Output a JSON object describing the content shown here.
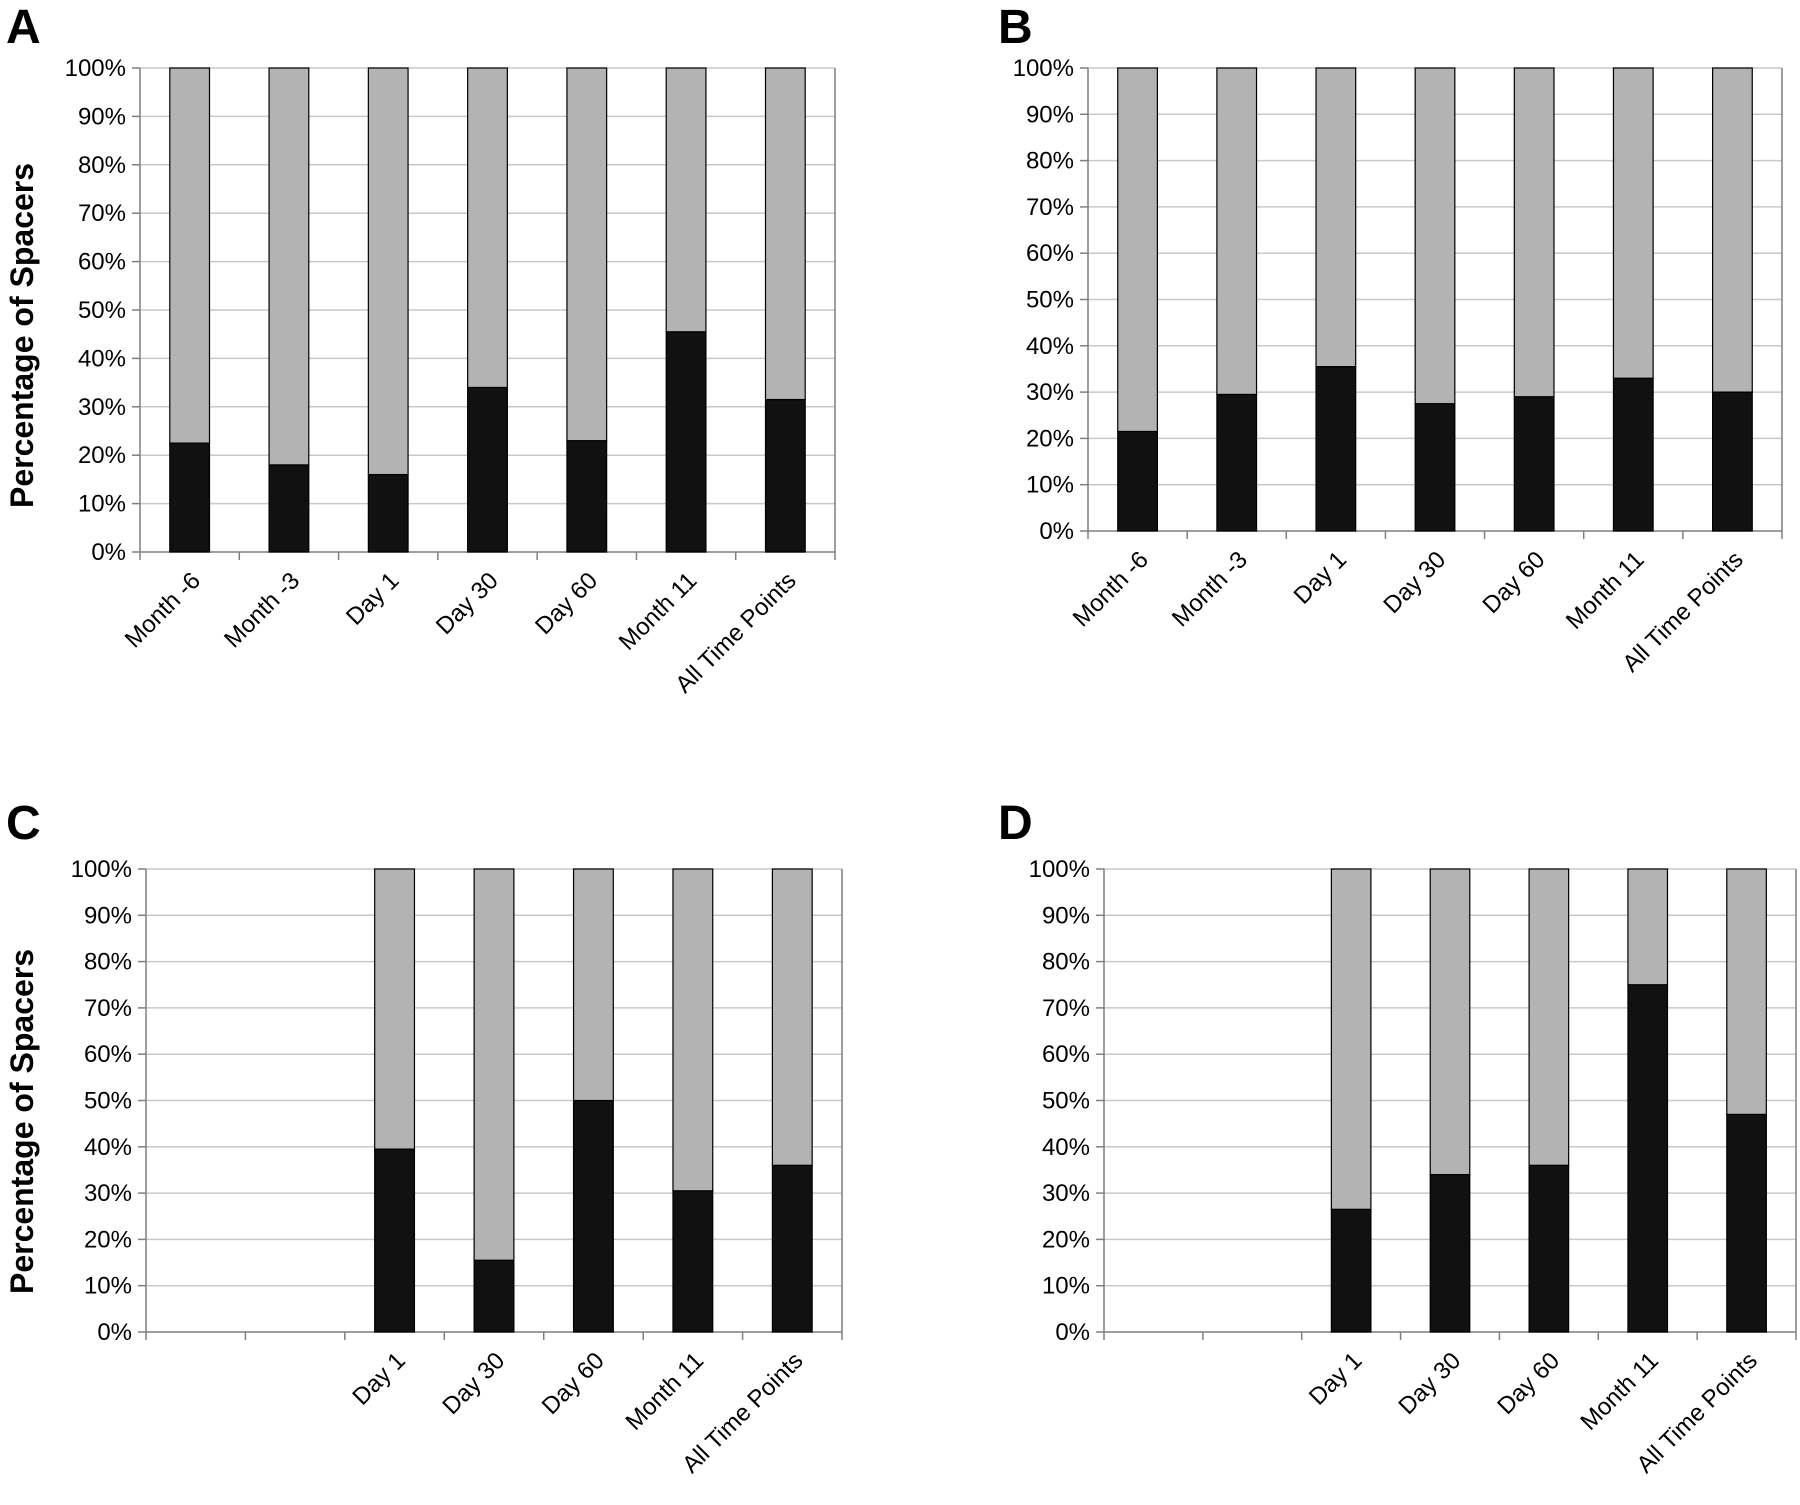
{
  "figure": {
    "colors": {
      "black_segment": "#111111",
      "gray_segment": "#b3b3b3",
      "gridline": "#c9c9c9",
      "axis": "#7f7f7f"
    }
  },
  "chart_data": [
    {
      "panel": "A",
      "type": "bar",
      "stacked": true,
      "ylabel": "Percentage of Spacers",
      "yticks": [
        "0%",
        "10%",
        "20%",
        "30%",
        "40%",
        "50%",
        "60%",
        "70%",
        "80%",
        "90%",
        "100%"
      ],
      "ylim": [
        0,
        100
      ],
      "categories": [
        "Month -6",
        "Month -3",
        "Day 1",
        "Day 30",
        "Day 60",
        "Month 11",
        "All Time Points"
      ],
      "series": [
        {
          "color": "#111111",
          "values": [
            22.5,
            18,
            16,
            34,
            23,
            45.5,
            31.5
          ]
        },
        {
          "color": "#b3b3b3",
          "values": [
            77.5,
            82,
            84,
            66,
            77,
            54.5,
            68.5
          ]
        }
      ],
      "grid": true
    },
    {
      "panel": "B",
      "type": "bar",
      "stacked": true,
      "ylabel": "",
      "yticks": [
        "0%",
        "10%",
        "20%",
        "30%",
        "40%",
        "50%",
        "60%",
        "70%",
        "80%",
        "90%",
        "100%"
      ],
      "ylim": [
        0,
        100
      ],
      "categories": [
        "Month -6",
        "Month -3",
        "Day 1",
        "Day 30",
        "Day 60",
        "Month 11",
        "All Time Points"
      ],
      "series": [
        {
          "color": "#111111",
          "values": [
            21.5,
            29.5,
            35.5,
            27.5,
            29,
            33,
            30
          ]
        },
        {
          "color": "#b3b3b3",
          "values": [
            78.5,
            70.5,
            64.5,
            72.5,
            71,
            67,
            70
          ]
        }
      ],
      "grid": true
    },
    {
      "panel": "C",
      "type": "bar",
      "stacked": true,
      "ylabel": "Percentage of Spacers",
      "yticks": [
        "0%",
        "10%",
        "20%",
        "30%",
        "40%",
        "50%",
        "60%",
        "70%",
        "80%",
        "90%",
        "100%"
      ],
      "ylim": [
        0,
        100
      ],
      "categories": [
        "",
        "",
        "Day 1",
        "Day 30",
        "Day 60",
        "Month 11",
        "All Time Points"
      ],
      "series": [
        {
          "color": "#111111",
          "values": [
            null,
            null,
            39.5,
            15.5,
            50,
            30.5,
            36
          ]
        },
        {
          "color": "#b3b3b3",
          "values": [
            null,
            null,
            60.5,
            84.5,
            50,
            69.5,
            64
          ]
        }
      ],
      "grid": true
    },
    {
      "panel": "D",
      "type": "bar",
      "stacked": true,
      "ylabel": "",
      "yticks": [
        "0%",
        "10%",
        "20%",
        "30%",
        "40%",
        "50%",
        "60%",
        "70%",
        "80%",
        "90%",
        "100%"
      ],
      "ylim": [
        0,
        100
      ],
      "categories": [
        "",
        "",
        "Day 1",
        "Day 30",
        "Day 60",
        "Month 11",
        "All Time Points"
      ],
      "series": [
        {
          "color": "#111111",
          "values": [
            null,
            null,
            26.5,
            34,
            36,
            75,
            47
          ]
        },
        {
          "color": "#b3b3b3",
          "values": [
            null,
            null,
            73.5,
            66,
            64,
            25,
            53
          ]
        }
      ],
      "grid": true
    }
  ]
}
